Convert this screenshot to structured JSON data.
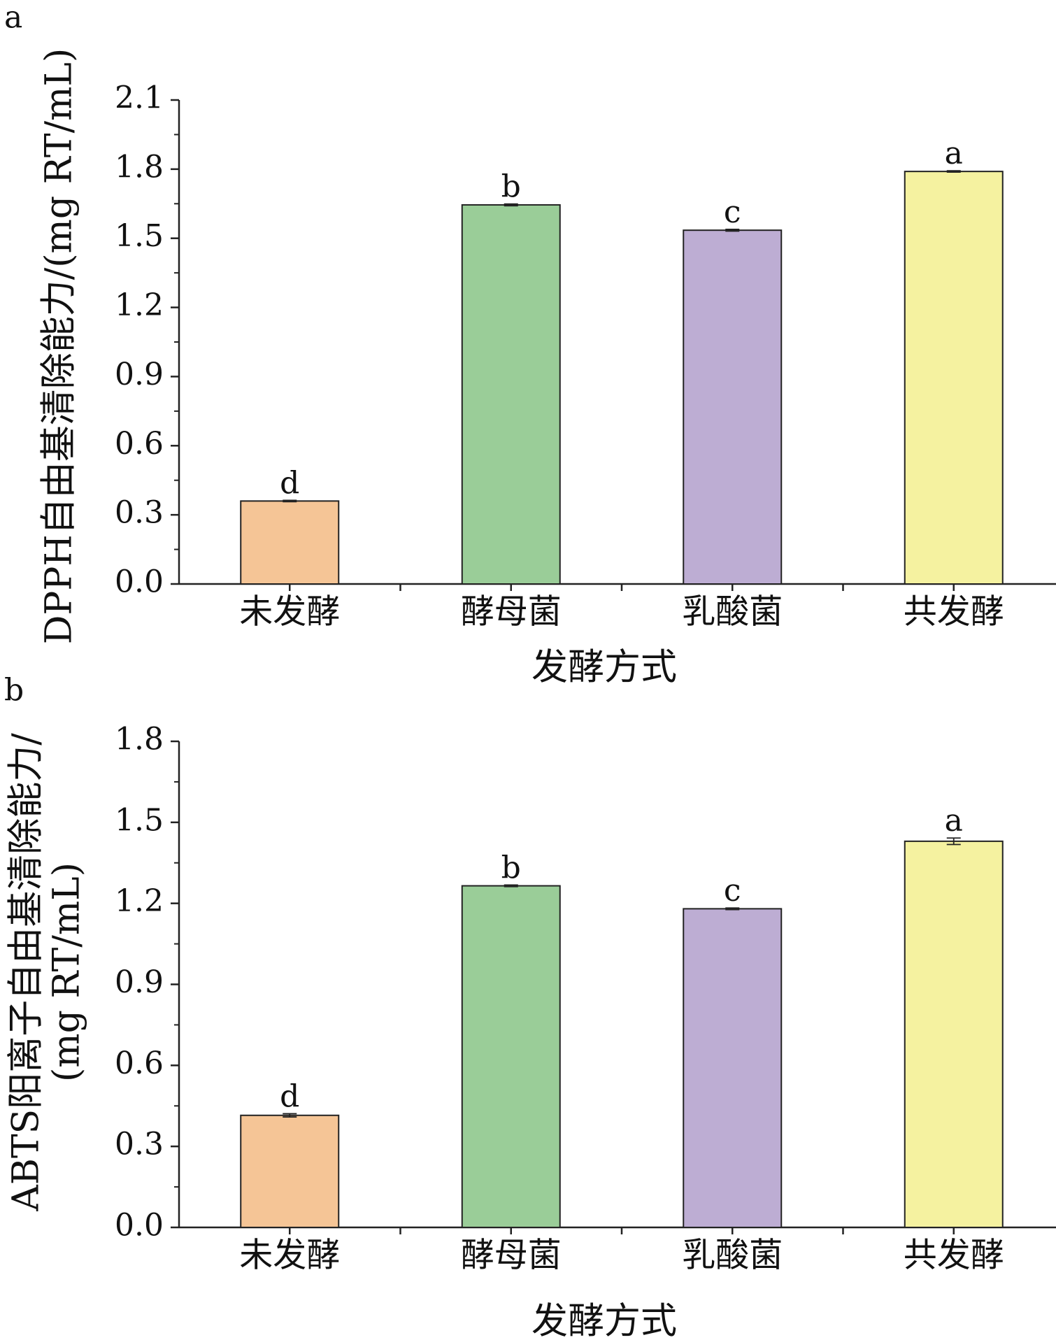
{
  "chart_data": [
    {
      "type": "bar",
      "panel_label": "a",
      "title": "",
      "categories": [
        "未发酵",
        "酵母菌",
        "乳酸菌",
        "共发酵"
      ],
      "values": [
        0.36,
        1.645,
        1.535,
        1.79
      ],
      "errors": [
        0.003,
        0.004,
        0.004,
        0.003
      ],
      "significance": [
        "d",
        "b",
        "c",
        "a"
      ],
      "colors": [
        "#F5C596",
        "#9ACD98",
        "#BDADD3",
        "#F5F2A0"
      ],
      "xlabel": "发酵方式",
      "ylabel_lines": [
        "DPPH自由基清除能力/(mg RT/mL)"
      ],
      "ylim": [
        0,
        2.1
      ],
      "yticks": [
        0.0,
        0.3,
        0.6,
        0.9,
        1.2,
        1.5,
        1.8,
        2.1
      ],
      "ytick_labels": [
        "0.0",
        "0.3",
        "0.6",
        "0.9",
        "1.2",
        "1.5",
        "1.8",
        "2.1"
      ],
      "grid": false,
      "legend": "none"
    },
    {
      "type": "bar",
      "panel_label": "b",
      "title": "",
      "categories": [
        "未发酵",
        "酵母菌",
        "乳酸菌",
        "共发酵"
      ],
      "values": [
        0.415,
        1.265,
        1.18,
        1.43
      ],
      "errors": [
        0.006,
        0.003,
        0.003,
        0.012
      ],
      "significance": [
        "d",
        "b",
        "c",
        "a"
      ],
      "colors": [
        "#F5C596",
        "#9ACD98",
        "#BDADD3",
        "#F5F2A0"
      ],
      "xlabel": "发酵方式",
      "ylabel_lines": [
        "ABTS阳离子自由基清除能力/",
        "(mg RT/mL)"
      ],
      "ylim": [
        0,
        1.8
      ],
      "yticks": [
        0.0,
        0.3,
        0.6,
        0.9,
        1.2,
        1.5,
        1.8
      ],
      "ytick_labels": [
        "0.0",
        "0.3",
        "0.6",
        "0.9",
        "1.2",
        "1.5",
        "1.8"
      ],
      "grid": false,
      "legend": "none"
    }
  ]
}
